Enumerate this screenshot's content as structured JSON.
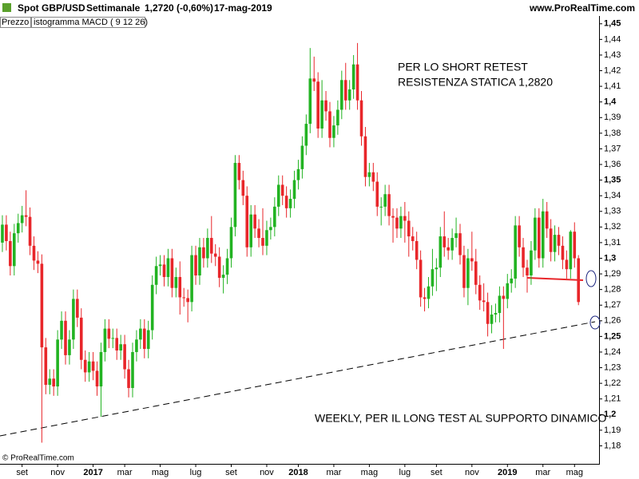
{
  "header": {
    "symbol": "Spot GBP/USD",
    "period": "Settimanale",
    "quote": "1,2720 (-0,60%)",
    "date": "17-mag-2019",
    "site": "www.ProRealTime.com"
  },
  "legend": [
    "Prezzo",
    "istogramma MACD ( 9 12 26)"
  ],
  "footer": "© ProRealTime.com",
  "chart_data": {
    "type": "candlestick",
    "up_color": "#22b322",
    "down_color": "#e8262a",
    "grid": false,
    "annotations": [
      "PER LO SHORT RETEST",
      "RESISTENZA STATICA 1,2820",
      "WEEKLY, PER IL LONG TEST AL SUPPORTO DINAMICO"
    ],
    "ylim": [
      1.169,
      1.455
    ],
    "yticks": [
      {
        "value": 1.18,
        "label": "1,18"
      },
      {
        "value": 1.19,
        "label": "1,19"
      },
      {
        "value": 1.2,
        "label": "1,2"
      },
      {
        "value": 1.21,
        "label": "1,21"
      },
      {
        "value": 1.22,
        "label": "1,22"
      },
      {
        "value": 1.23,
        "label": "1,23"
      },
      {
        "value": 1.24,
        "label": "1,24"
      },
      {
        "value": 1.25,
        "label": "1,25"
      },
      {
        "value": 1.26,
        "label": "1,26"
      },
      {
        "value": 1.27,
        "label": "1,27"
      },
      {
        "value": 1.28,
        "label": "1,28"
      },
      {
        "value": 1.29,
        "label": "1,29"
      },
      {
        "value": 1.3,
        "label": "1,3"
      },
      {
        "value": 1.31,
        "label": "1,31"
      },
      {
        "value": 1.32,
        "label": "1,32"
      },
      {
        "value": 1.33,
        "label": "1,33"
      },
      {
        "value": 1.34,
        "label": "1,34"
      },
      {
        "value": 1.35,
        "label": "1,35"
      },
      {
        "value": 1.36,
        "label": "1,36"
      },
      {
        "value": 1.37,
        "label": "1,37"
      },
      {
        "value": 1.38,
        "label": "1,38"
      },
      {
        "value": 1.39,
        "label": "1,39"
      },
      {
        "value": 1.4,
        "label": "1,4"
      },
      {
        "value": 1.41,
        "label": "1,41"
      },
      {
        "value": 1.42,
        "label": "1,42"
      },
      {
        "value": 1.43,
        "label": "1,43"
      },
      {
        "value": 1.44,
        "label": "1,44"
      },
      {
        "value": 1.45,
        "label": "1,45"
      }
    ],
    "categories": [
      null,
      null,
      null,
      null,
      null,
      "set",
      null,
      null,
      null,
      null,
      null,
      null,
      null,
      null,
      "nov",
      null,
      null,
      null,
      null,
      null,
      null,
      null,
      null,
      "2017",
      null,
      null,
      null,
      null,
      null,
      null,
      null,
      "mar",
      null,
      null,
      null,
      null,
      null,
      null,
      null,
      null,
      "mag",
      null,
      null,
      null,
      null,
      null,
      null,
      null,
      null,
      "lug",
      null,
      null,
      null,
      null,
      null,
      null,
      null,
      null,
      "set",
      null,
      null,
      null,
      null,
      null,
      null,
      null,
      null,
      "nov",
      null,
      null,
      null,
      null,
      null,
      null,
      null,
      "2018",
      null,
      null,
      null,
      null,
      null,
      null,
      null,
      null,
      "mar",
      null,
      null,
      null,
      null,
      null,
      null,
      null,
      null,
      "mag",
      null,
      null,
      null,
      null,
      null,
      null,
      null,
      null,
      "lug",
      null,
      null,
      null,
      null,
      null,
      null,
      null,
      "set",
      null,
      null,
      null,
      null,
      null,
      null,
      null,
      null,
      "nov",
      null,
      null,
      null,
      null,
      null,
      null,
      null,
      null,
      "2019",
      null,
      null,
      null,
      null,
      null,
      null,
      null,
      null,
      "mar",
      null,
      null,
      null,
      null,
      null,
      null,
      null,
      "mag",
      null
    ],
    "open": [
      1.31,
      1.3215,
      1.311,
      1.295,
      1.316,
      1.3225,
      1.3275,
      1.3265,
      1.308,
      1.2985,
      1.2965,
      1.243,
      1.219,
      1.223,
      1.218,
      1.248,
      1.26,
      1.238,
      1.248,
      1.274,
      1.262,
      1.235,
      1.227,
      1.234,
      1.228,
      1.218,
      1.24,
      1.255,
      1.2485,
      1.249,
      1.241,
      1.245,
      1.229,
      1.217,
      1.24,
      1.248,
      1.255,
      1.242,
      1.254,
      1.283,
      1.295,
      1.296,
      1.288,
      1.3,
      1.281,
      1.288,
      1.275,
      1.2745,
      1.272,
      1.302,
      1.289,
      1.307,
      1.3,
      1.313,
      1.303,
      1.301,
      1.2875,
      1.2895,
      1.3,
      1.32,
      1.361,
      1.35,
      1.34,
      1.307,
      1.328,
      1.319,
      1.313,
      1.308,
      1.318,
      1.32,
      1.333,
      1.347,
      1.34,
      1.332,
      1.338,
      1.35,
      1.357,
      1.372,
      1.386,
      1.415,
      1.413,
      1.383,
      1.401,
      1.394,
      1.377,
      1.385,
      1.395,
      1.414,
      1.401,
      1.408,
      1.424,
      1.401,
      1.378,
      1.352,
      1.355,
      1.349,
      1.333,
      1.333,
      1.341,
      1.327,
      1.326,
      1.319,
      1.327,
      1.324,
      1.314,
      1.311,
      1.299,
      1.275,
      1.274,
      1.282,
      1.293,
      1.294,
      1.314,
      1.307,
      1.305,
      1.313,
      1.316,
      1.302,
      1.281,
      1.3,
      1.298,
      1.283,
      1.273,
      1.272,
      1.258,
      1.264,
      1.265,
      1.276,
      1.274,
      1.284,
      1.287,
      1.321,
      1.307,
      1.294,
      1.289,
      1.305,
      1.326,
      1.3,
      1.33,
      1.319,
      1.304,
      1.315,
      1.308,
      1.299,
      1.293,
      1.317,
      1.3
    ],
    "high": [
      1.3275,
      1.3275,
      1.317,
      1.322,
      1.3285,
      1.3335,
      1.3435,
      1.3325,
      1.314,
      1.3045,
      1.3025,
      1.249,
      1.229,
      1.229,
      1.254,
      1.266,
      1.266,
      1.254,
      1.28,
      1.28,
      1.268,
      1.241,
      1.24,
      1.24,
      1.234,
      1.246,
      1.261,
      1.261,
      1.255,
      1.255,
      1.251,
      1.251,
      1.235,
      1.246,
      1.254,
      1.261,
      1.261,
      1.26,
      1.289,
      1.301,
      1.302,
      1.302,
      1.306,
      1.306,
      1.294,
      1.298,
      1.281,
      1.28,
      1.308,
      1.308,
      1.313,
      1.313,
      1.319,
      1.327,
      1.309,
      1.307,
      1.2955,
      1.306,
      1.326,
      1.366,
      1.366,
      1.356,
      1.346,
      1.334,
      1.334,
      1.325,
      1.332,
      1.324,
      1.326,
      1.339,
      1.353,
      1.353,
      1.346,
      1.344,
      1.356,
      1.363,
      1.378,
      1.392,
      1.4345,
      1.429,
      1.419,
      1.414,
      1.407,
      1.4,
      1.391,
      1.401,
      1.42,
      1.425,
      1.414,
      1.43,
      1.4377,
      1.407,
      1.384,
      1.361,
      1.361,
      1.355,
      1.339,
      1.347,
      1.347,
      1.332,
      1.332,
      1.333,
      1.336,
      1.33,
      1.32,
      1.317,
      1.305,
      1.281,
      1.288,
      1.306,
      1.3,
      1.32,
      1.33,
      1.313,
      1.319,
      1.326,
      1.322,
      1.308,
      1.306,
      1.317,
      1.306,
      1.289,
      1.284,
      1.278,
      1.27,
      1.271,
      1.282,
      1.282,
      1.29,
      1.293,
      1.327,
      1.327,
      1.313,
      1.299,
      1.311,
      1.332,
      1.332,
      1.338,
      1.336,
      1.325,
      1.321,
      1.32,
      1.314,
      1.305,
      1.318,
      1.323,
      1.302
    ],
    "low": [
      1.304,
      1.305,
      1.289,
      1.289,
      1.31,
      1.3165,
      1.3205,
      1.302,
      1.2925,
      1.2905,
      1.182,
      1.213,
      1.213,
      1.212,
      1.212,
      1.242,
      1.232,
      1.232,
      1.242,
      1.256,
      1.229,
      1.221,
      1.221,
      1.222,
      1.212,
      1.1986,
      1.234,
      1.2425,
      1.2425,
      1.235,
      1.235,
      1.223,
      1.211,
      1.211,
      1.234,
      1.242,
      1.236,
      1.236,
      1.248,
      1.277,
      1.289,
      1.282,
      1.282,
      1.275,
      1.275,
      1.264,
      1.269,
      1.259,
      1.266,
      1.283,
      1.283,
      1.294,
      1.294,
      1.297,
      1.295,
      1.2815,
      1.2775,
      1.2835,
      1.294,
      1.314,
      1.344,
      1.334,
      1.301,
      1.301,
      1.313,
      1.307,
      1.302,
      1.302,
      1.312,
      1.314,
      1.327,
      1.334,
      1.326,
      1.326,
      1.332,
      1.344,
      1.351,
      1.366,
      1.38,
      1.407,
      1.377,
      1.377,
      1.388,
      1.371,
      1.371,
      1.379,
      1.389,
      1.395,
      1.395,
      1.402,
      1.395,
      1.372,
      1.346,
      1.346,
      1.343,
      1.327,
      1.321,
      1.327,
      1.321,
      1.31,
      1.313,
      1.313,
      1.31,
      1.301,
      1.305,
      1.293,
      1.269,
      1.266,
      1.268,
      1.276,
      1.279,
      1.288,
      1.301,
      1.299,
      1.299,
      1.307,
      1.296,
      1.275,
      1.27,
      1.292,
      1.277,
      1.267,
      1.266,
      1.25,
      1.252,
      1.259,
      1.259,
      1.242,
      1.268,
      1.278,
      1.281,
      1.301,
      1.288,
      1.278,
      1.283,
      1.299,
      1.294,
      1.294,
      1.313,
      1.298,
      1.298,
      1.302,
      1.293,
      1.287,
      1.287,
      1.294,
      1.27
    ],
    "close": [
      1.3215,
      1.311,
      1.295,
      1.316,
      1.3225,
      1.3275,
      1.3265,
      1.308,
      1.2985,
      1.2965,
      1.243,
      1.219,
      1.223,
      1.218,
      1.248,
      1.26,
      1.238,
      1.248,
      1.274,
      1.262,
      1.235,
      1.227,
      1.234,
      1.228,
      1.218,
      1.24,
      1.255,
      1.2485,
      1.249,
      1.241,
      1.245,
      1.229,
      1.217,
      1.24,
      1.248,
      1.255,
      1.242,
      1.254,
      1.283,
      1.295,
      1.296,
      1.288,
      1.3,
      1.281,
      1.288,
      1.275,
      1.2745,
      1.272,
      1.302,
      1.289,
      1.307,
      1.3,
      1.313,
      1.303,
      1.301,
      1.2875,
      1.2895,
      1.3,
      1.32,
      1.361,
      1.35,
      1.34,
      1.307,
      1.328,
      1.319,
      1.313,
      1.308,
      1.318,
      1.32,
      1.333,
      1.347,
      1.34,
      1.332,
      1.338,
      1.35,
      1.357,
      1.372,
      1.386,
      1.415,
      1.413,
      1.383,
      1.401,
      1.394,
      1.377,
      1.385,
      1.395,
      1.414,
      1.401,
      1.408,
      1.424,
      1.401,
      1.378,
      1.352,
      1.355,
      1.349,
      1.333,
      1.333,
      1.341,
      1.327,
      1.326,
      1.319,
      1.327,
      1.324,
      1.314,
      1.311,
      1.299,
      1.275,
      1.274,
      1.282,
      1.293,
      1.294,
      1.314,
      1.307,
      1.305,
      1.313,
      1.316,
      1.302,
      1.281,
      1.3,
      1.298,
      1.283,
      1.273,
      1.272,
      1.258,
      1.264,
      1.265,
      1.276,
      1.274,
      1.284,
      1.287,
      1.321,
      1.307,
      1.294,
      1.289,
      1.305,
      1.326,
      1.3,
      1.33,
      1.319,
      1.304,
      1.315,
      1.308,
      1.299,
      1.293,
      1.317,
      1.3,
      1.272
    ]
  }
}
